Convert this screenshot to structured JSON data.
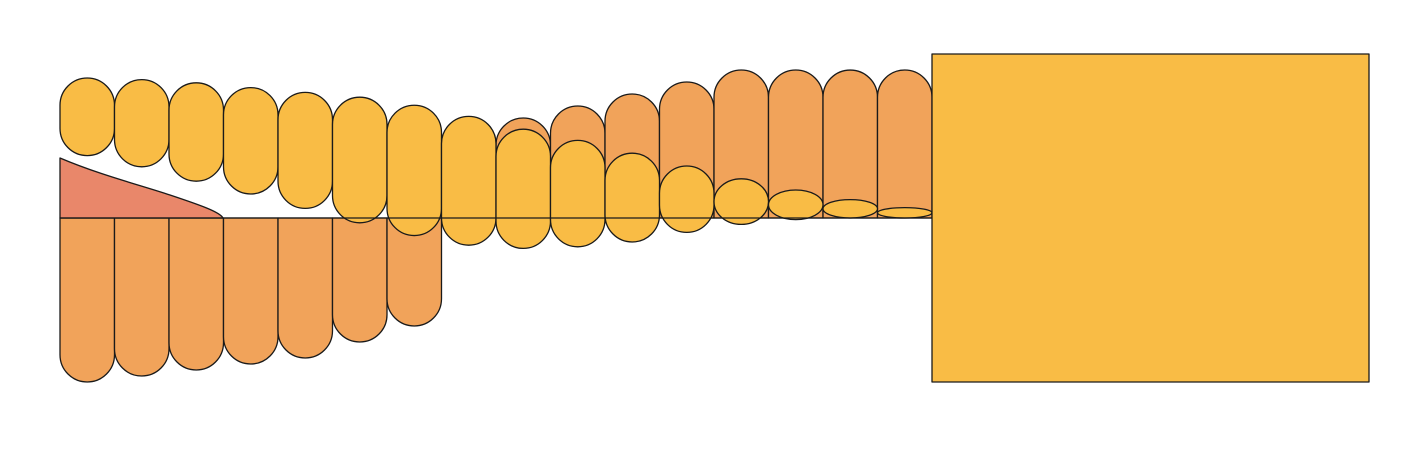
{
  "figure": {
    "kind": "rounded-bar-comparison",
    "text_labels": []
  },
  "palette": {
    "bar_yellow": "#F9BC45",
    "band_orange": "#F1A35A",
    "accent_salmon": "#E9876A",
    "outline": "#1A1A1A",
    "background": "#FFFFFF"
  },
  "bars": [
    {
      "index": 1,
      "level_top": 1.0,
      "level_bottom": 0.39
    },
    {
      "index": 2,
      "level_top": 0.99,
      "level_bottom": 0.32
    },
    {
      "index": 3,
      "level_top": 0.97,
      "level_bottom": 0.23
    },
    {
      "index": 4,
      "level_top": 0.94,
      "level_bottom": 0.15
    },
    {
      "index": 5,
      "level_top": 0.91,
      "level_bottom": 0.06
    },
    {
      "index": 6,
      "level_top": 0.88,
      "level_bottom": -0.03
    },
    {
      "index": 7,
      "level_top": 0.83,
      "level_bottom": -0.11
    },
    {
      "index": 8,
      "level_top": 0.76,
      "level_bottom": -0.17
    },
    {
      "index": 9,
      "level_top": 0.68,
      "level_bottom": -0.19
    },
    {
      "index": 10,
      "level_top": 0.61,
      "level_bottom": -0.18
    },
    {
      "index": 11,
      "level_top": 0.53,
      "level_bottom": -0.15
    },
    {
      "index": 12,
      "level_top": 0.45,
      "level_bottom": -0.09
    },
    {
      "index": 13,
      "level_top": 0.37,
      "level_bottom": -0.04
    },
    {
      "index": 14,
      "level_top": 0.3,
      "level_bottom": -0.01
    },
    {
      "index": 15,
      "level_top": 0.24,
      "level_bottom": 0.0
    },
    {
      "index": 16,
      "level_top": 0.19,
      "level_bottom": 0.0
    }
  ]
}
